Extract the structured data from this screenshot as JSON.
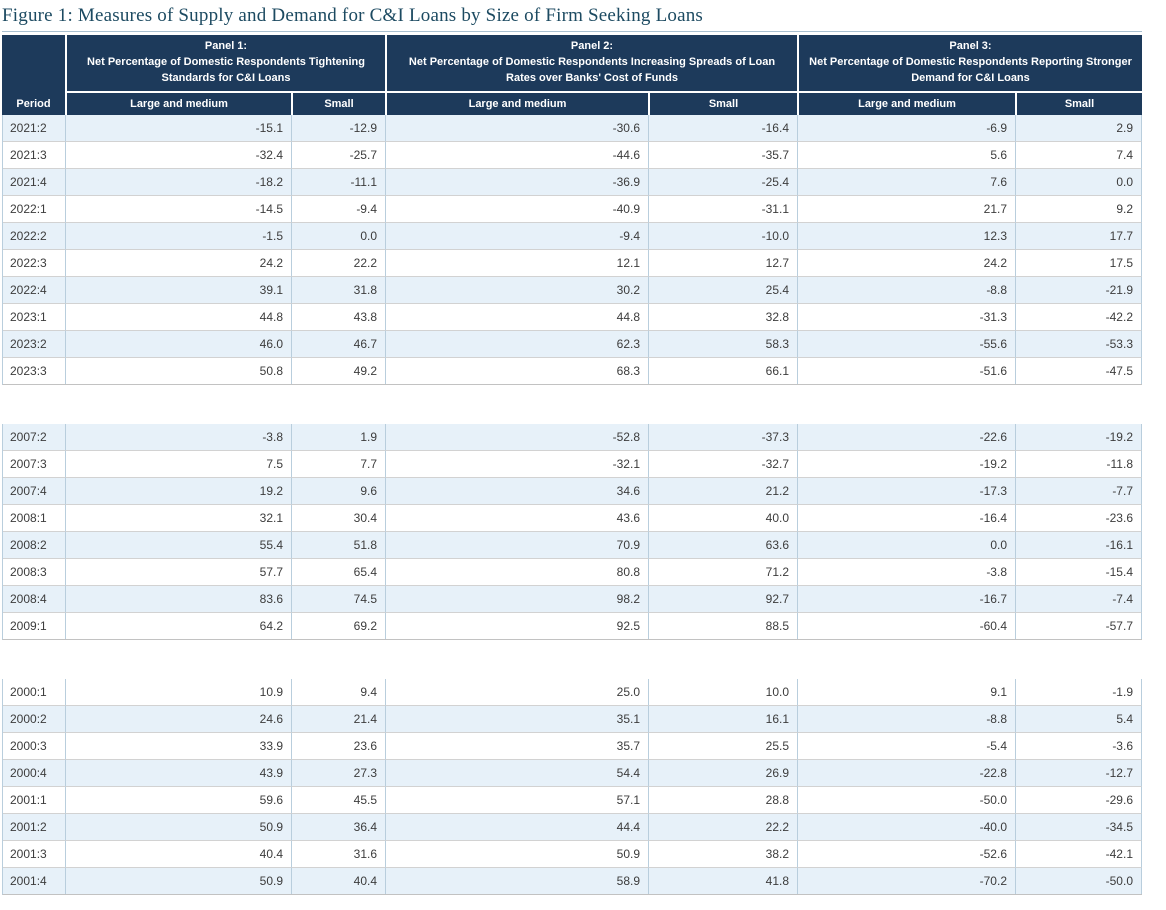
{
  "chart_data": {
    "type": "table",
    "title": "Figure 1: Measures of Supply and Demand for C&I Loans by Size of Firm Seeking Loans",
    "period_header": "Period",
    "panels": [
      {
        "label": "Panel 1:",
        "description": "Net Percentage of Domestic Respondents Tightening Standards for C&I Loans",
        "columns": [
          "Large and medium",
          "Small"
        ]
      },
      {
        "label": "Panel 2:",
        "description": "Net Percentage of Domestic Respondents Increasing Spreads of Loan Rates over Banks' Cost of Funds",
        "columns": [
          "Large and medium",
          "Small"
        ]
      },
      {
        "label": "Panel 3:",
        "description": "Net Percentage of Domestic Respondents Reporting Stronger Demand for C&I Loans",
        "columns": [
          "Large and medium",
          "Small"
        ]
      }
    ],
    "groups": [
      {
        "first_row_shaded": true,
        "rows": [
          {
            "period": "2021:2",
            "values": [
              "-15.1",
              "-12.9",
              "-30.6",
              "-16.4",
              "-6.9",
              "2.9"
            ]
          },
          {
            "period": "2021:3",
            "values": [
              "-32.4",
              "-25.7",
              "-44.6",
              "-35.7",
              "5.6",
              "7.4"
            ]
          },
          {
            "period": "2021:4",
            "values": [
              "-18.2",
              "-11.1",
              "-36.9",
              "-25.4",
              "7.6",
              "0.0"
            ]
          },
          {
            "period": "2022:1",
            "values": [
              "-14.5",
              "-9.4",
              "-40.9",
              "-31.1",
              "21.7",
              "9.2"
            ]
          },
          {
            "period": "2022:2",
            "values": [
              "-1.5",
              "0.0",
              "-9.4",
              "-10.0",
              "12.3",
              "17.7"
            ]
          },
          {
            "period": "2022:3",
            "values": [
              "24.2",
              "22.2",
              "12.1",
              "12.7",
              "24.2",
              "17.5"
            ]
          },
          {
            "period": "2022:4",
            "values": [
              "39.1",
              "31.8",
              "30.2",
              "25.4",
              "-8.8",
              "-21.9"
            ]
          },
          {
            "period": "2023:1",
            "values": [
              "44.8",
              "43.8",
              "44.8",
              "32.8",
              "-31.3",
              "-42.2"
            ]
          },
          {
            "period": "2023:2",
            "values": [
              "46.0",
              "46.7",
              "62.3",
              "58.3",
              "-55.6",
              "-53.3"
            ]
          },
          {
            "period": "2023:3",
            "values": [
              "50.8",
              "49.2",
              "68.3",
              "66.1",
              "-51.6",
              "-47.5"
            ]
          }
        ]
      },
      {
        "first_row_shaded": true,
        "rows": [
          {
            "period": "2007:2",
            "values": [
              "-3.8",
              "1.9",
              "-52.8",
              "-37.3",
              "-22.6",
              "-19.2"
            ]
          },
          {
            "period": "2007:3",
            "values": [
              "7.5",
              "7.7",
              "-32.1",
              "-32.7",
              "-19.2",
              "-11.8"
            ]
          },
          {
            "period": "2007:4",
            "values": [
              "19.2",
              "9.6",
              "34.6",
              "21.2",
              "-17.3",
              "-7.7"
            ]
          },
          {
            "period": "2008:1",
            "values": [
              "32.1",
              "30.4",
              "43.6",
              "40.0",
              "-16.4",
              "-23.6"
            ]
          },
          {
            "period": "2008:2",
            "values": [
              "55.4",
              "51.8",
              "70.9",
              "63.6",
              "0.0",
              "-16.1"
            ]
          },
          {
            "period": "2008:3",
            "values": [
              "57.7",
              "65.4",
              "80.8",
              "71.2",
              "-3.8",
              "-15.4"
            ]
          },
          {
            "period": "2008:4",
            "values": [
              "83.6",
              "74.5",
              "98.2",
              "92.7",
              "-16.7",
              "-7.4"
            ]
          },
          {
            "period": "2009:1",
            "values": [
              "64.2",
              "69.2",
              "92.5",
              "88.5",
              "-60.4",
              "-57.7"
            ]
          }
        ]
      },
      {
        "first_row_shaded": false,
        "rows": [
          {
            "period": "2000:1",
            "values": [
              "10.9",
              "9.4",
              "25.0",
              "10.0",
              "9.1",
              "-1.9"
            ]
          },
          {
            "period": "2000:2",
            "values": [
              "24.6",
              "21.4",
              "35.1",
              "16.1",
              "-8.8",
              "5.4"
            ]
          },
          {
            "period": "2000:3",
            "values": [
              "33.9",
              "23.6",
              "35.7",
              "25.5",
              "-5.4",
              "-3.6"
            ]
          },
          {
            "period": "2000:4",
            "values": [
              "43.9",
              "27.3",
              "54.4",
              "26.9",
              "-22.8",
              "-12.7"
            ]
          },
          {
            "period": "2001:1",
            "values": [
              "59.6",
              "45.5",
              "57.1",
              "28.8",
              "-50.0",
              "-29.6"
            ]
          },
          {
            "period": "2001:2",
            "values": [
              "50.9",
              "36.4",
              "44.4",
              "22.2",
              "-40.0",
              "-34.5"
            ]
          },
          {
            "period": "2001:3",
            "values": [
              "40.4",
              "31.6",
              "50.9",
              "38.2",
              "-52.6",
              "-42.1"
            ]
          },
          {
            "period": "2001:4",
            "values": [
              "50.9",
              "40.4",
              "58.9",
              "41.8",
              "-70.2",
              "-50.0"
            ]
          }
        ]
      }
    ],
    "colors": {
      "header_bg": "#1d3a5b",
      "header_text": "#ffffff",
      "shaded_row": "#e7f1f9",
      "title_text": "#1c4a61"
    }
  }
}
